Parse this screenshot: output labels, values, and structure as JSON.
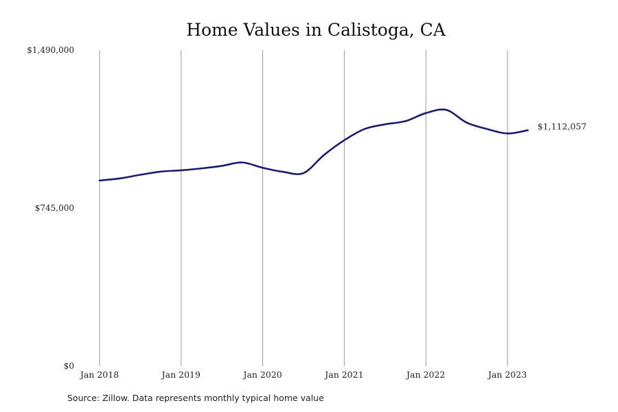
{
  "source_note": "Source: Zillow. Data represents monthly typical home value",
  "chart_data": {
    "type": "line",
    "title": "Home Values in Calistoga, CA",
    "xlabel": "",
    "ylabel": "",
    "ylim": [
      0,
      1490000
    ],
    "yticks": [
      0,
      745000,
      1490000
    ],
    "ytick_labels": [
      "$0",
      "$745,000",
      "$1,490,000"
    ],
    "xticks": [
      "2018-01",
      "2019-01",
      "2020-01",
      "2021-01",
      "2022-01",
      "2023-01"
    ],
    "xtick_labels": [
      "Jan 2018",
      "Jan 2019",
      "Jan 2020",
      "Jan 2021",
      "Jan 2022",
      "Jan 2023"
    ],
    "grid": {
      "x": true,
      "y": false
    },
    "end_label": "$1,112,057",
    "colors": {
      "line": "#1a1a6e",
      "grid": "#9a9a9a"
    },
    "series": [
      {
        "x": [
          "2018-01",
          "2018-04",
          "2018-07",
          "2018-10",
          "2019-01",
          "2019-04",
          "2019-07",
          "2019-10",
          "2020-01",
          "2020-04",
          "2020-07",
          "2020-10",
          "2021-01",
          "2021-04",
          "2021-07",
          "2021-10",
          "2022-01",
          "2022-04",
          "2022-07",
          "2022-10",
          "2023-01",
          "2023-04"
        ],
        "y": [
          875000,
          885000,
          902000,
          917000,
          923000,
          932000,
          944000,
          960000,
          935000,
          916000,
          910000,
          995000,
          1065000,
          1118000,
          1140000,
          1155000,
          1193000,
          1208000,
          1148000,
          1118000,
          1097000,
          1112057
        ]
      }
    ]
  }
}
